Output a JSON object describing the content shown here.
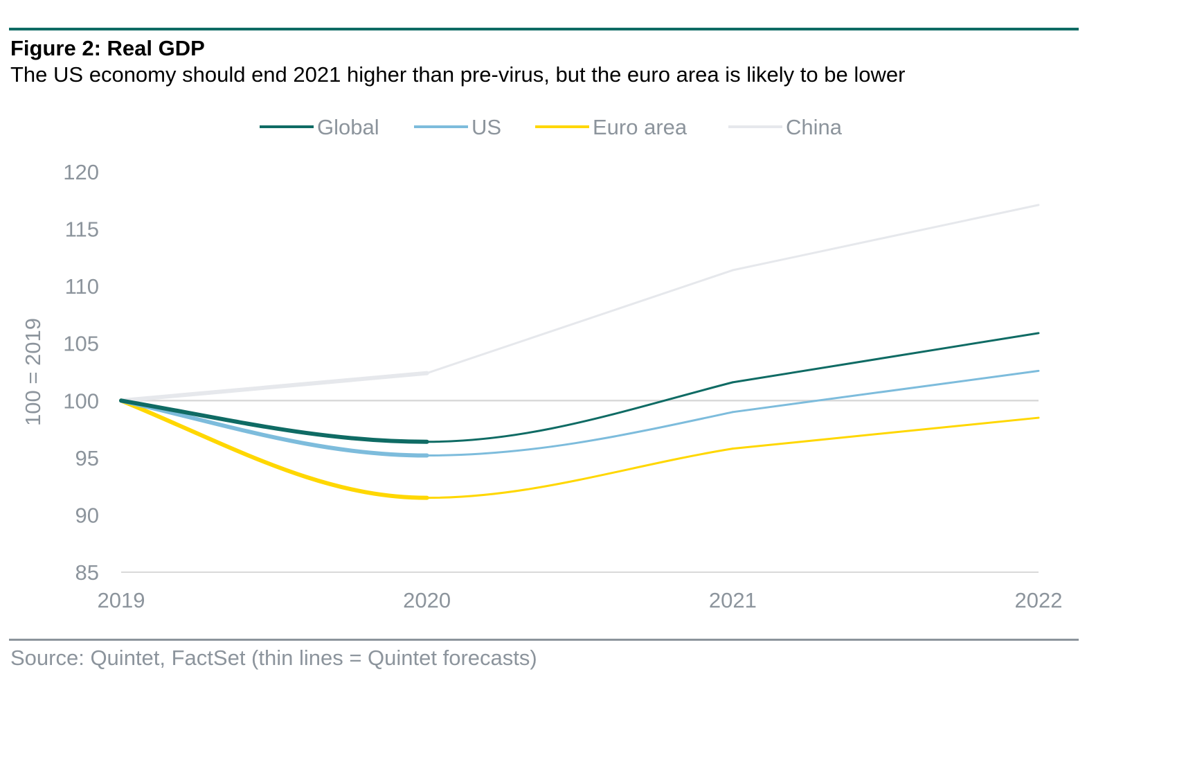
{
  "title": "Figure 2: Real GDP",
  "subtitle": "The US economy should end 2021 higher than pre-virus, but the euro area is likely to be lower",
  "source": "Source: Quintet, FactSet (thin lines = Quintet forecasts)",
  "colors": {
    "global": "#0f6b64",
    "us": "#7dbcdc",
    "euro": "#ffd700",
    "china": "#e6e8ec",
    "axis_text": "#8c949c",
    "baseline": "#d9d9d9"
  },
  "chart_data": {
    "type": "line",
    "ylabel": "100 = 2019",
    "xlabel": "",
    "x": [
      2019,
      2020,
      2021,
      2022
    ],
    "x_ticks": [
      "2019",
      "2020",
      "2021",
      "2022"
    ],
    "ylim": [
      85,
      120
    ],
    "y_ticks": [
      "120",
      "115",
      "110",
      "105",
      "100",
      "95",
      "90",
      "85"
    ],
    "y_tick_values": [
      120,
      115,
      110,
      105,
      100,
      95,
      90,
      85
    ],
    "reference_line": 100,
    "legend_position": "top-center",
    "actual_until": 2020,
    "series": [
      {
        "name": "Global",
        "key": "global",
        "smooth": true,
        "values": [
          100,
          96.4,
          101.6,
          105.9
        ]
      },
      {
        "name": "US",
        "key": "us",
        "smooth": true,
        "values": [
          100,
          95.2,
          99.0,
          102.6
        ]
      },
      {
        "name": "Euro area",
        "key": "euro",
        "smooth": true,
        "values": [
          100,
          91.5,
          95.8,
          98.5
        ]
      },
      {
        "name": "China",
        "key": "china",
        "smooth": false,
        "values": [
          100,
          102.4,
          111.4,
          117.1
        ]
      }
    ]
  }
}
